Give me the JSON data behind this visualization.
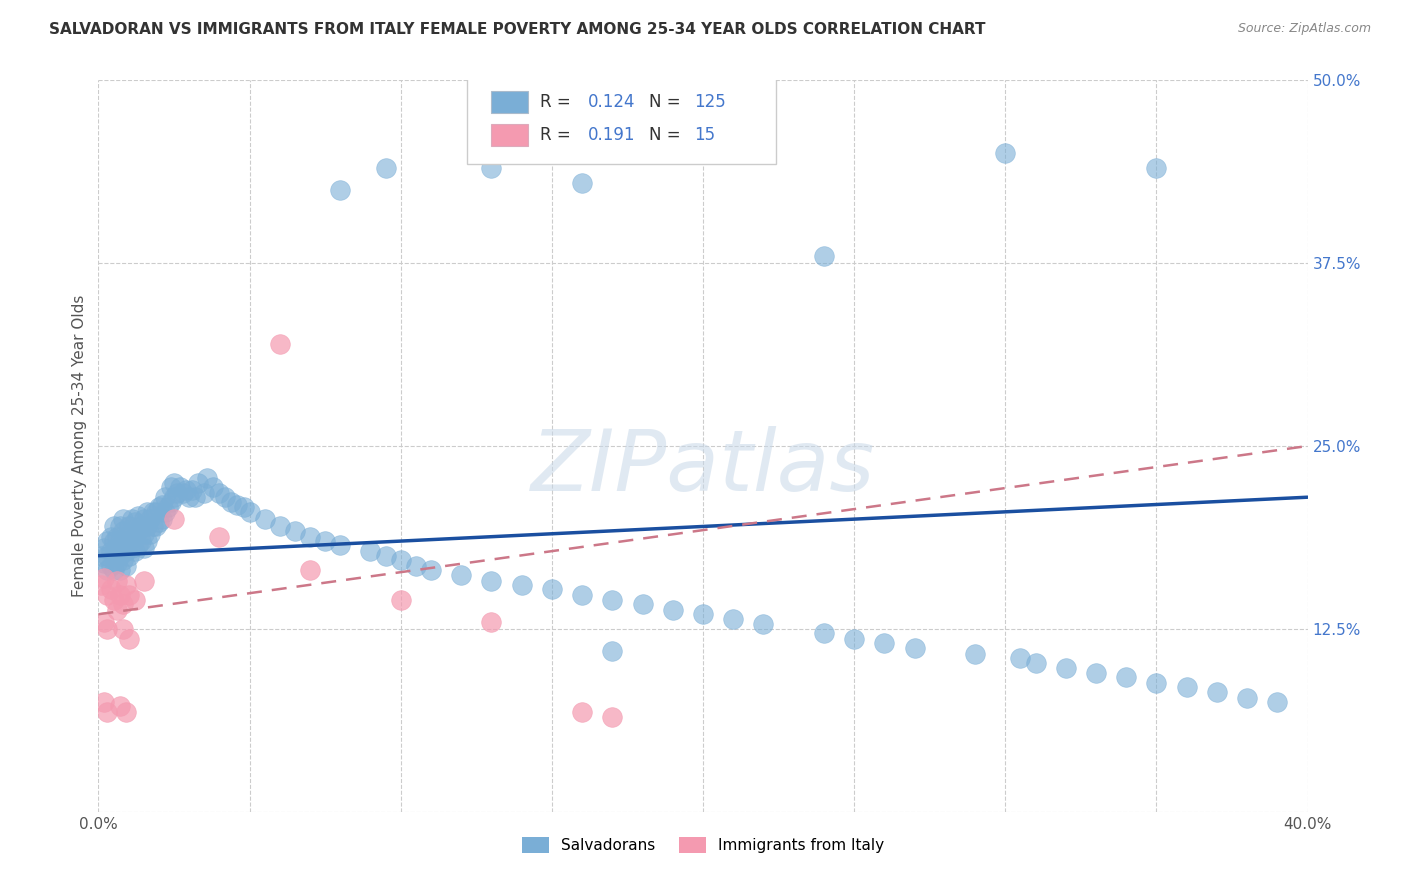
{
  "title": "SALVADORAN VS IMMIGRANTS FROM ITALY FEMALE POVERTY AMONG 25-34 YEAR OLDS CORRELATION CHART",
  "source": "Source: ZipAtlas.com",
  "ylabel": "Female Poverty Among 25-34 Year Olds",
  "xlim": [
    0.0,
    0.4
  ],
  "ylim": [
    0.0,
    0.5
  ],
  "xticks": [
    0.0,
    0.05,
    0.1,
    0.15,
    0.2,
    0.25,
    0.3,
    0.35,
    0.4
  ],
  "yticks": [
    0.0,
    0.125,
    0.25,
    0.375,
    0.5
  ],
  "salvadoran_color": "#7aaed6",
  "italy_color": "#f49ab0",
  "trend_color_salvadoran": "#1a4fa0",
  "trend_color_italy": "#cc7788",
  "watermark": "ZIPatlas",
  "background_color": "#ffffff",
  "grid_color": "#cccccc",
  "sal_trend_x0": 0.0,
  "sal_trend_y0": 0.175,
  "sal_trend_x1": 0.4,
  "sal_trend_y1": 0.215,
  "ita_trend_x0": 0.0,
  "ita_trend_y0": 0.135,
  "ita_trend_x1": 0.4,
  "ita_trend_y1": 0.25,
  "sal_x": [
    0.001,
    0.002,
    0.002,
    0.003,
    0.003,
    0.003,
    0.004,
    0.004,
    0.004,
    0.005,
    0.005,
    0.005,
    0.005,
    0.006,
    0.006,
    0.006,
    0.007,
    0.007,
    0.007,
    0.007,
    0.008,
    0.008,
    0.008,
    0.008,
    0.009,
    0.009,
    0.009,
    0.01,
    0.01,
    0.01,
    0.011,
    0.011,
    0.011,
    0.012,
    0.012,
    0.012,
    0.013,
    0.013,
    0.013,
    0.014,
    0.014,
    0.015,
    0.015,
    0.015,
    0.016,
    0.016,
    0.016,
    0.017,
    0.017,
    0.018,
    0.018,
    0.019,
    0.019,
    0.02,
    0.02,
    0.021,
    0.021,
    0.022,
    0.022,
    0.023,
    0.024,
    0.024,
    0.025,
    0.025,
    0.026,
    0.027,
    0.028,
    0.029,
    0.03,
    0.031,
    0.032,
    0.033,
    0.035,
    0.036,
    0.038,
    0.04,
    0.042,
    0.044,
    0.046,
    0.048,
    0.05,
    0.055,
    0.06,
    0.065,
    0.07,
    0.075,
    0.08,
    0.09,
    0.095,
    0.1,
    0.105,
    0.11,
    0.12,
    0.13,
    0.14,
    0.15,
    0.16,
    0.17,
    0.18,
    0.19,
    0.2,
    0.21,
    0.22,
    0.24,
    0.25,
    0.26,
    0.27,
    0.29,
    0.305,
    0.31,
    0.32,
    0.33,
    0.34,
    0.35,
    0.36,
    0.37,
    0.38,
    0.39,
    0.13,
    0.16,
    0.24,
    0.3,
    0.35,
    0.095,
    0.17,
    0.08
  ],
  "sal_y": [
    0.175,
    0.17,
    0.18,
    0.165,
    0.175,
    0.185,
    0.168,
    0.178,
    0.188,
    0.165,
    0.175,
    0.185,
    0.195,
    0.17,
    0.18,
    0.188,
    0.165,
    0.175,
    0.185,
    0.195,
    0.172,
    0.182,
    0.192,
    0.2,
    0.168,
    0.178,
    0.188,
    0.175,
    0.185,
    0.195,
    0.18,
    0.19,
    0.2,
    0.178,
    0.188,
    0.198,
    0.182,
    0.192,
    0.202,
    0.185,
    0.195,
    0.18,
    0.19,
    0.2,
    0.185,
    0.195,
    0.205,
    0.19,
    0.2,
    0.195,
    0.205,
    0.195,
    0.205,
    0.198,
    0.208,
    0.2,
    0.21,
    0.205,
    0.215,
    0.208,
    0.212,
    0.222,
    0.215,
    0.225,
    0.218,
    0.222,
    0.218,
    0.22,
    0.215,
    0.22,
    0.215,
    0.225,
    0.218,
    0.228,
    0.222,
    0.218,
    0.215,
    0.212,
    0.21,
    0.208,
    0.205,
    0.2,
    0.195,
    0.192,
    0.188,
    0.185,
    0.182,
    0.178,
    0.175,
    0.172,
    0.168,
    0.165,
    0.162,
    0.158,
    0.155,
    0.152,
    0.148,
    0.145,
    0.142,
    0.138,
    0.135,
    0.132,
    0.128,
    0.122,
    0.118,
    0.115,
    0.112,
    0.108,
    0.105,
    0.102,
    0.098,
    0.095,
    0.092,
    0.088,
    0.085,
    0.082,
    0.078,
    0.075,
    0.44,
    0.43,
    0.38,
    0.45,
    0.44,
    0.44,
    0.11,
    0.425
  ],
  "ita_x": [
    0.001,
    0.002,
    0.003,
    0.004,
    0.005,
    0.006,
    0.007,
    0.008,
    0.009,
    0.01,
    0.012,
    0.015,
    0.06,
    0.13,
    0.17,
    0.002,
    0.003,
    0.006,
    0.008,
    0.01,
    0.025,
    0.04,
    0.07,
    0.1,
    0.16,
    0.002,
    0.003,
    0.007,
    0.009
  ],
  "ita_y": [
    0.155,
    0.16,
    0.148,
    0.152,
    0.145,
    0.158,
    0.148,
    0.142,
    0.155,
    0.148,
    0.145,
    0.158,
    0.32,
    0.13,
    0.065,
    0.13,
    0.125,
    0.138,
    0.125,
    0.118,
    0.2,
    0.188,
    0.165,
    0.145,
    0.068,
    0.075,
    0.068,
    0.072,
    0.068
  ]
}
